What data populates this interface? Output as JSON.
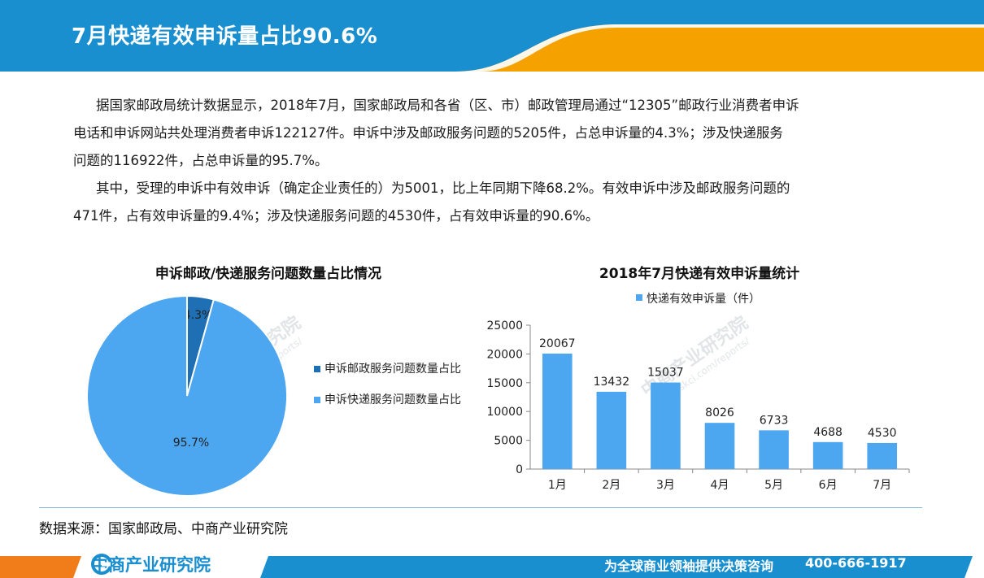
{
  "header": {
    "title": "7月快递有效申诉量占比90.6%"
  },
  "body": {
    "para1_line1": "据国家邮政局统计数据显示，2018年7月，国家邮政局和各省（区、市）邮政管理局通过“12305”邮政行业消费者申诉",
    "para1_line2": "电话和申诉网站共处理消费者申诉122127件。申诉中涉及邮政服务问题的5205件，占总申诉量的4.3%；涉及快递服务",
    "para1_line3": "问题的116922件，占总申诉量的95.7%。",
    "para2_line1": "其中，受理的申诉中有效申诉（确定企业责任的）为5001，比上年同期下降68.2%。有效申诉中涉及邮政服务问题的",
    "para2_line2": "471件，占有效申诉量的9.4%；涉及快递服务问题的4530件，占有效申诉量的90.6%。"
  },
  "chart_data": [
    {
      "type": "pie",
      "title": "申诉邮政/快递服务问题数量占比情况",
      "labels": [
        "申诉邮政服务问题数量占比",
        "申诉快递服务问题数量占比"
      ],
      "values": [
        4.3,
        95.7
      ],
      "data_labels": [
        "4.3%",
        "95.7%"
      ],
      "colors": [
        "#1f6fb5",
        "#4da6f0"
      ],
      "legend_position": "right"
    },
    {
      "type": "bar",
      "title": "2018年7月快递有效申诉量统计",
      "categories": [
        "1月",
        "2月",
        "3月",
        "4月",
        "5月",
        "6月",
        "7月"
      ],
      "series": [
        {
          "name": "快递有效申诉量（件）",
          "values": [
            20067,
            13432,
            15037,
            8026,
            6733,
            4688,
            4530
          ],
          "color": "#4da6f0"
        }
      ],
      "yticks": [
        "0",
        "5000",
        "10000",
        "15000",
        "20000",
        "25000"
      ],
      "ylim": [
        0,
        25000
      ],
      "legend_position": "top",
      "grid": false
    }
  ],
  "watermark": {
    "brand": "中商产业研究院",
    "url": "www.askci.com/reports/"
  },
  "source": {
    "text": "数据来源：国家邮政局、中商产业研究院"
  },
  "footer": {
    "logo_text": "中商产业研究院",
    "slogan": "为全球商业领袖提供决策咨询",
    "phone": "400-666-1917"
  },
  "colors": {
    "blue": "#1a8fd0",
    "orange": "#f5a100",
    "dark_blue": "#1f6fb5",
    "light_blue": "#4da6f0"
  }
}
